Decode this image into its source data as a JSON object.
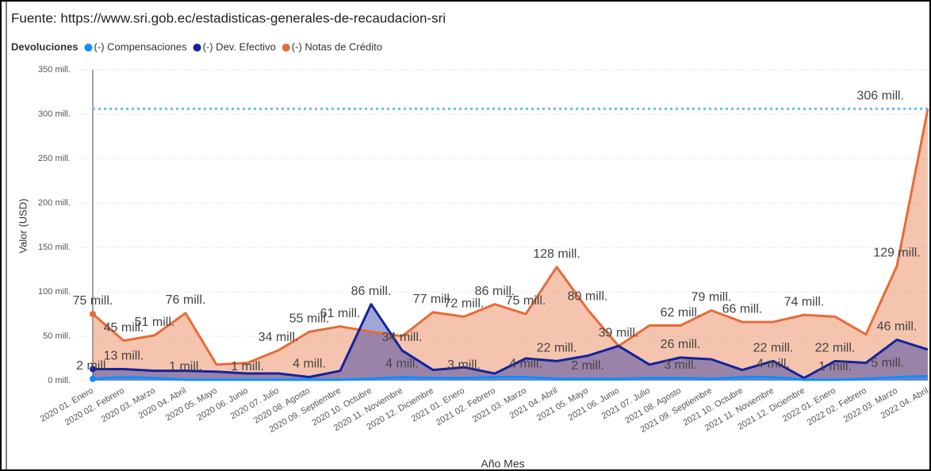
{
  "chart_data": {
    "type": "area",
    "title": "Fuente: https://www.sri.gob.ec/estadisticas-generales-de-recaudacion-sri",
    "legend_title": "Devoluciones",
    "y_label": "Valor (USD)",
    "x_label": "Año Mes",
    "categories": [
      "2020 01. Enero",
      "2020 02. Febrero",
      "2020 03. Marzo",
      "2020 04. Abril",
      "2020 05. Mayo",
      "2020 06. Junio",
      "2020 07. Julio",
      "2020 08. Agosto",
      "2020 09. Septiembre",
      "2020 10. Octubre",
      "2020 11. Noviembre",
      "2020 12. Diciembre",
      "2021 01. Enero",
      "2021 02. Febrero",
      "2021 03. Marzo",
      "2021 04. Abril",
      "2021 05. Mayo",
      "2021 06. Junio",
      "2021 07. Julio",
      "2021 08. Agosto",
      "2021 09. Septiembre",
      "2021 10. Octubre",
      "2021 11. Noviembre",
      "2021 12. Diciembre",
      "2022 01. Enero",
      "2022 02. Febrero",
      "2022 03. Marzo",
      "2022 04. Abril"
    ],
    "series": [
      {
        "name": "(-) Compensaciones",
        "color": "#118dff",
        "values": [
          2,
          4,
          3,
          1,
          1,
          1,
          1,
          1,
          1,
          2,
          4,
          3,
          3,
          4,
          4,
          2,
          2,
          2,
          3,
          3,
          2,
          4,
          4,
          1,
          1,
          2,
          4,
          5
        ],
        "value_labels": [
          "2 mill.",
          null,
          null,
          "1 mill.",
          null,
          "1 mill.",
          null,
          null,
          null,
          null,
          "4 mill.",
          null,
          "3 mill.",
          null,
          "4 mill.",
          null,
          "2 mill.",
          null,
          null,
          "3 mill.",
          null,
          null,
          "4 mill.",
          null,
          "1 mill.",
          null,
          null,
          "5 mill."
        ]
      },
      {
        "name": "(-) Dev. Efectivo",
        "color": "#12239e",
        "values": [
          13,
          13,
          11,
          11,
          10,
          8,
          8,
          4,
          11,
          86,
          34,
          12,
          15,
          8,
          25,
          22,
          28,
          39,
          18,
          26,
          24,
          12,
          22,
          3,
          22,
          20,
          46,
          35
        ],
        "value_labels": [
          null,
          "13 mill.",
          null,
          null,
          null,
          null,
          null,
          "4 mill.",
          null,
          "86 mill.",
          "34 mill.",
          null,
          null,
          null,
          null,
          "22 mill.",
          null,
          null,
          null,
          "26 mill.",
          null,
          null,
          "22 mill.",
          null,
          "22 mill.",
          null,
          "46 mill.",
          null
        ]
      },
      {
        "name": "(-) Notas de Crédito",
        "color": "#e66c37",
        "values": [
          75,
          45,
          51,
          76,
          18,
          20,
          34,
          55,
          61,
          55,
          50,
          77,
          72,
          86,
          75,
          128,
          80,
          39,
          62,
          62,
          79,
          66,
          66,
          74,
          72,
          52,
          129,
          306
        ],
        "value_labels": [
          "75 mill.",
          "45 mill.",
          "51 mill.",
          "76 mill.",
          null,
          null,
          "34 mill.",
          "55 mill.",
          "61 mill.",
          null,
          null,
          "77 mill.",
          "72 mill.",
          "86 mill.",
          "75 mill.",
          "128 mill.",
          "80 mill.",
          "39 mill.",
          null,
          "62 mill.",
          "79 mill.",
          "66 mill.",
          null,
          "74 mill.",
          null,
          null,
          "129 mill.",
          "306 mill."
        ]
      }
    ],
    "reference_line": {
      "value": 306,
      "color": "#6cb8f0"
    },
    "ylim": [
      0,
      350
    ],
    "yticks": [
      {
        "value": 0,
        "label": "0 mill."
      },
      {
        "value": 50,
        "label": "50 mill."
      },
      {
        "value": 100,
        "label": "100 mill."
      },
      {
        "value": 150,
        "label": "150 mill."
      },
      {
        "value": 200,
        "label": "200 mill."
      },
      {
        "value": 250,
        "label": "250 mill."
      },
      {
        "value": 300,
        "label": "300 mill."
      },
      {
        "value": 350,
        "label": "350 mill."
      }
    ],
    "grid": true
  }
}
